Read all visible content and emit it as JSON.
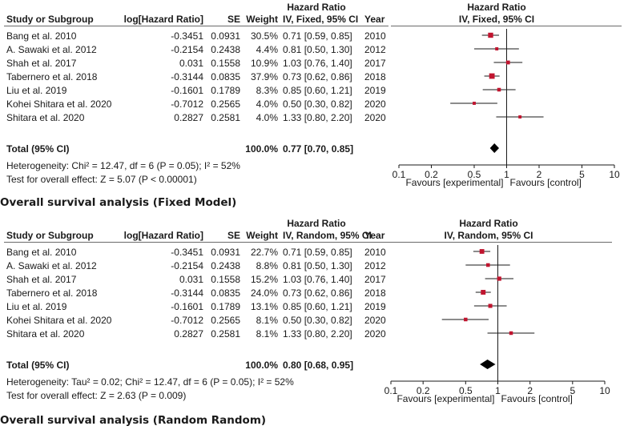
{
  "chart_data": [
    {
      "type": "forest",
      "title": "Overall survival analysis (Fixed Model)",
      "group_header": "Hazard Ratio",
      "plot_header_top": "Hazard Ratio",
      "columns": {
        "study": "Study or Subgroup",
        "loghr": "log[Hazard Ratio]",
        "se": "SE",
        "weight": "Weight",
        "ci": "IV, Fixed, 95% CI",
        "year": "Year",
        "plot": "IV, Fixed, 95% CI"
      },
      "rows": [
        {
          "study": "Bang et al. 2010",
          "loghr": "-0.3451",
          "se": "0.0931",
          "weight": "30.5%",
          "ci": "0.71 [0.59, 0.85]",
          "year": "2010",
          "hr": 0.71,
          "lo": 0.59,
          "hi": 0.85,
          "w": 30.5
        },
        {
          "study": "A. Sawaki et al. 2012",
          "loghr": "-0.2154",
          "se": "0.2438",
          "weight": "4.4%",
          "ci": "0.81 [0.50, 1.30]",
          "year": "2012",
          "hr": 0.81,
          "lo": 0.5,
          "hi": 1.3,
          "w": 4.4
        },
        {
          "study": "Shah et al. 2017",
          "loghr": "0.031",
          "se": "0.1558",
          "weight": "10.9%",
          "ci": "1.03 [0.76, 1.40]",
          "year": "2017",
          "hr": 1.03,
          "lo": 0.76,
          "hi": 1.4,
          "w": 10.9
        },
        {
          "study": "Tabernero et al. 2018",
          "loghr": "-0.3144",
          "se": "0.0835",
          "weight": "37.9%",
          "ci": "0.73 [0.62, 0.86]",
          "year": "2018",
          "hr": 0.73,
          "lo": 0.62,
          "hi": 0.86,
          "w": 37.9
        },
        {
          "study": "Liu et al. 2019",
          "loghr": "-0.1601",
          "se": "0.1789",
          "weight": "8.3%",
          "ci": "0.85 [0.60, 1.21]",
          "year": "2019",
          "hr": 0.85,
          "lo": 0.6,
          "hi": 1.21,
          "w": 8.3
        },
        {
          "study": "Kohei Shitara et al. 2020",
          "loghr": "-0.7012",
          "se": "0.2565",
          "weight": "4.0%",
          "ci": "0.50 [0.30, 0.82]",
          "year": "2020",
          "hr": 0.5,
          "lo": 0.3,
          "hi": 0.82,
          "w": 4.0
        },
        {
          "study": "Shitara et al. 2020",
          "loghr": "0.2827",
          "se": "0.2581",
          "weight": "4.0%",
          "ci": "1.33 [0.80, 2.20]",
          "year": "2020",
          "hr": 1.33,
          "lo": 0.8,
          "hi": 2.2,
          "w": 4.0
        }
      ],
      "total": {
        "label": "Total (95% CI)",
        "weight": "100.0%",
        "ci": "0.77 [0.70, 0.85]",
        "hr": 0.77,
        "lo": 0.7,
        "hi": 0.85
      },
      "heterogeneity": "Heterogeneity: Chi² = 12.47, df = 6 (P = 0.05); I² = 52%",
      "overall_effect": "Test for overall effect: Z = 5.07 (P < 0.00001)",
      "x_scale": "log",
      "xlim": [
        0.1,
        10
      ],
      "x_ticks": [
        0.1,
        0.2,
        0.5,
        1,
        2,
        5,
        10
      ],
      "x_tick_labels": [
        "0.1",
        "0.2",
        "0.5",
        "1",
        "2",
        "5",
        "10"
      ],
      "favours_left": "Favours [experimental]",
      "favours_right": "Favours [control]",
      "marker_color": "#c0152f",
      "diamond_color": "#000000"
    },
    {
      "type": "forest",
      "title": "Overall survival analysis (Random Random)",
      "group_header": "Hazard Ratio",
      "plot_header_top": "Hazard Ratio",
      "columns": {
        "study": "Study or Subgroup",
        "loghr": "log[Hazard Ratio]",
        "se": "SE",
        "weight": "Weight",
        "ci": "IV, Random, 95% CI",
        "year": "Year",
        "plot": "IV, Random, 95% CI"
      },
      "rows": [
        {
          "study": "Bang et al. 2010",
          "loghr": "-0.3451",
          "se": "0.0931",
          "weight": "22.7%",
          "ci": "0.71 [0.59, 0.85]",
          "year": "2010",
          "hr": 0.71,
          "lo": 0.59,
          "hi": 0.85,
          "w": 22.7
        },
        {
          "study": "A. Sawaki et al. 2012",
          "loghr": "-0.2154",
          "se": "0.2438",
          "weight": "8.8%",
          "ci": "0.81 [0.50, 1.30]",
          "year": "2012",
          "hr": 0.81,
          "lo": 0.5,
          "hi": 1.3,
          "w": 8.8
        },
        {
          "study": "Shah et al. 2017",
          "loghr": "0.031",
          "se": "0.1558",
          "weight": "15.2%",
          "ci": "1.03 [0.76, 1.40]",
          "year": "2017",
          "hr": 1.03,
          "lo": 0.76,
          "hi": 1.4,
          "w": 15.2
        },
        {
          "study": "Tabernero et al. 2018",
          "loghr": "-0.3144",
          "se": "0.0835",
          "weight": "24.0%",
          "ci": "0.73 [0.62, 0.86]",
          "year": "2018",
          "hr": 0.73,
          "lo": 0.62,
          "hi": 0.86,
          "w": 24.0
        },
        {
          "study": "Liu et al. 2019",
          "loghr": "-0.1601",
          "se": "0.1789",
          "weight": "13.1%",
          "ci": "0.85 [0.60, 1.21]",
          "year": "2019",
          "hr": 0.85,
          "lo": 0.6,
          "hi": 1.21,
          "w": 13.1
        },
        {
          "study": "Kohei Shitara et al. 2020",
          "loghr": "-0.7012",
          "se": "0.2565",
          "weight": "8.1%",
          "ci": "0.50 [0.30, 0.82]",
          "year": "2020",
          "hr": 0.5,
          "lo": 0.3,
          "hi": 0.82,
          "w": 8.1
        },
        {
          "study": "Shitara et al. 2020",
          "loghr": "0.2827",
          "se": "0.2581",
          "weight": "8.1%",
          "ci": "1.33 [0.80, 2.20]",
          "year": "2020",
          "hr": 1.33,
          "lo": 0.8,
          "hi": 2.2,
          "w": 8.1
        }
      ],
      "total": {
        "label": "Total (95% CI)",
        "weight": "100.0%",
        "ci": "0.80 [0.68, 0.95]",
        "hr": 0.8,
        "lo": 0.68,
        "hi": 0.95
      },
      "heterogeneity": "Heterogeneity: Tau² = 0.02; Chi² = 12.47, df = 6 (P = 0.05); I² = 52%",
      "overall_effect": "Test for overall effect: Z = 2.63 (P = 0.009)",
      "x_scale": "log",
      "xlim": [
        0.1,
        10
      ],
      "x_ticks": [
        0.1,
        0.2,
        0.5,
        1,
        2,
        5,
        10
      ],
      "x_tick_labels": [
        "0.1",
        "0.2",
        "0.5",
        "1",
        "2",
        "5",
        "10"
      ],
      "favours_left": "Favours [experimental]",
      "favours_right": "Favours [control]",
      "marker_color": "#c0152f",
      "diamond_color": "#000000"
    }
  ]
}
